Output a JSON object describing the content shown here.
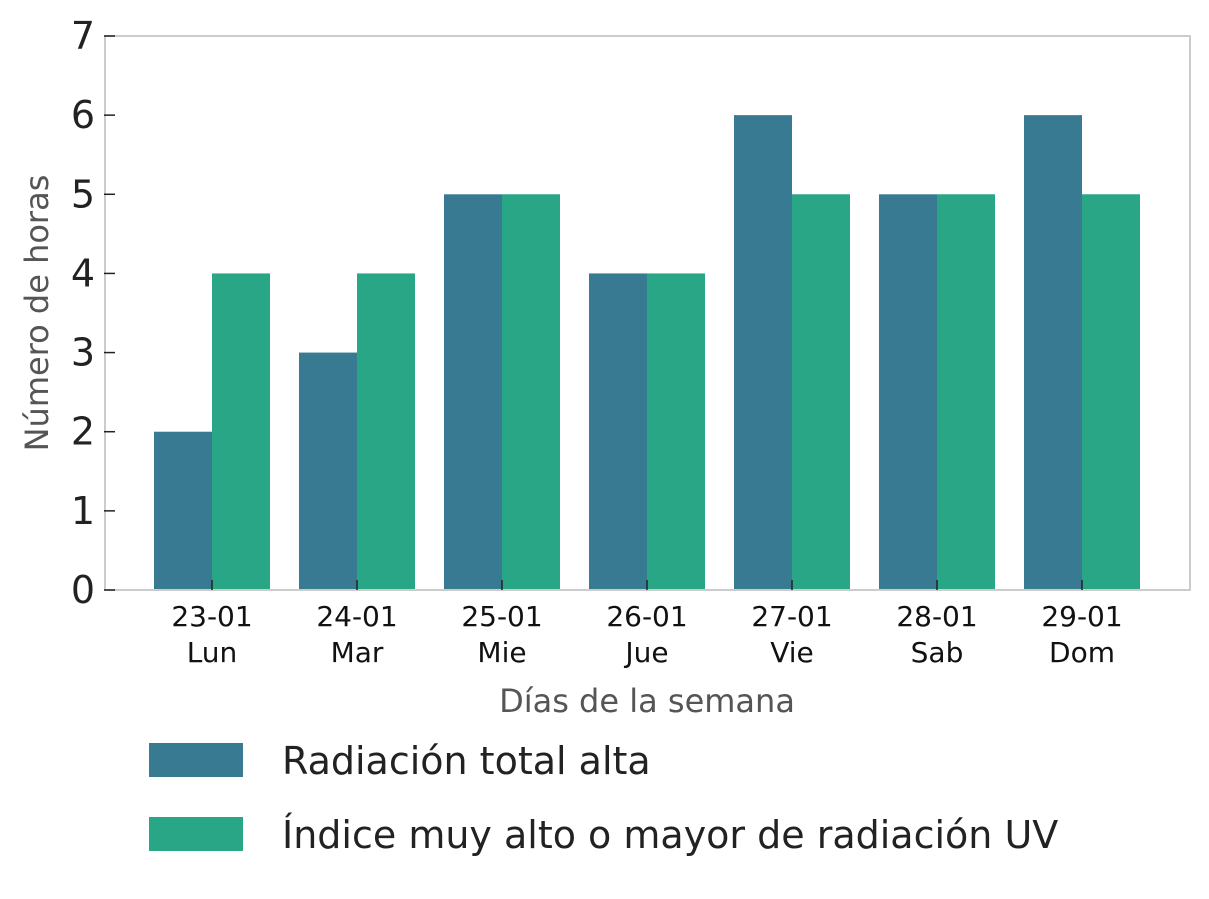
{
  "chart_data": {
    "type": "bar",
    "categories": [
      "23-01\nLun",
      "24-01\nMar",
      "25-01\nMie",
      "26-01\nJue",
      "27-01\nVie",
      "28-01\nSab",
      "29-01\nDom"
    ],
    "series": [
      {
        "name": "Radiación total alta",
        "values": [
          2,
          3,
          5,
          4,
          6,
          5,
          6
        ],
        "color": "#377a92"
      },
      {
        "name": "Índice muy alto o mayor de radiación UV",
        "values": [
          4,
          4,
          5,
          4,
          5,
          5,
          5
        ],
        "color": "#28a686"
      }
    ],
    "xlabel": "Días de la semana",
    "ylabel": "Número de horas",
    "ylim": [
      0,
      7
    ],
    "yticks": [
      0,
      1,
      2,
      3,
      4,
      5,
      6,
      7
    ],
    "grid": false,
    "legend_position": "bottom",
    "frame_color": "#cccccc"
  }
}
